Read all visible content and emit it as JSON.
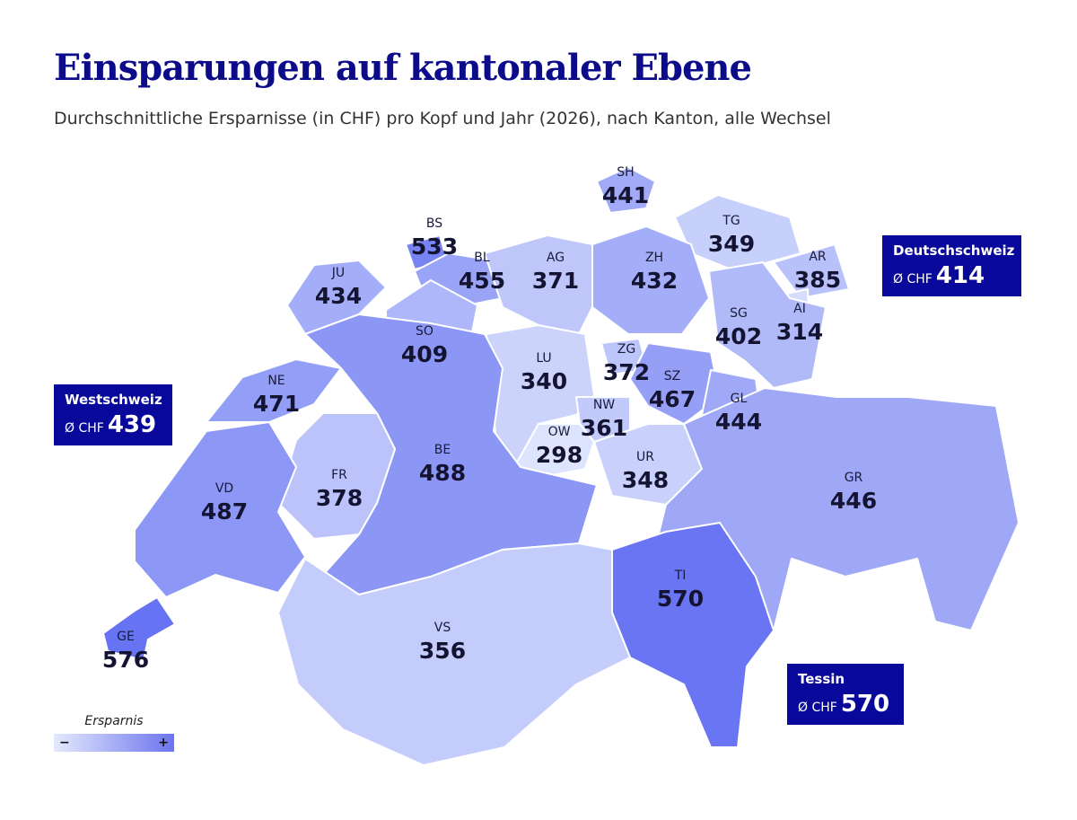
{
  "title": "Einsparungen auf kantonaler Ebene",
  "subtitle": "Durchschnittliche Ersparnisse (in CHF) pro Kopf und Jahr (2026), nach Kanton, alle Wechsel",
  "color_scale": {
    "low": "#dde4fd",
    "high": "#6673f2",
    "border": "#ffffff",
    "box_bg": "#08089a"
  },
  "cantons": [
    {
      "code": "SH",
      "value": 441
    },
    {
      "code": "BS",
      "value": 533
    },
    {
      "code": "TG",
      "value": 349
    },
    {
      "code": "AR",
      "value": 385
    },
    {
      "code": "JU",
      "value": 434
    },
    {
      "code": "BL",
      "value": 455
    },
    {
      "code": "AG",
      "value": 371
    },
    {
      "code": "ZH",
      "value": 432
    },
    {
      "code": "AI",
      "value": 314
    },
    {
      "code": "SG",
      "value": 402
    },
    {
      "code": "SO",
      "value": 409
    },
    {
      "code": "LU",
      "value": 340
    },
    {
      "code": "ZG",
      "value": 372
    },
    {
      "code": "SZ",
      "value": 467
    },
    {
      "code": "NE",
      "value": 471
    },
    {
      "code": "NW",
      "value": 361
    },
    {
      "code": "GL",
      "value": 444
    },
    {
      "code": "OW",
      "value": 298
    },
    {
      "code": "UR",
      "value": 348
    },
    {
      "code": "BE",
      "value": 488
    },
    {
      "code": "FR",
      "value": 378
    },
    {
      "code": "VD",
      "value": 487
    },
    {
      "code": "GR",
      "value": 446
    },
    {
      "code": "TI",
      "value": 570
    },
    {
      "code": "VS",
      "value": 356
    },
    {
      "code": "GE",
      "value": 576
    }
  ],
  "regions": {
    "deutschschweiz": {
      "name": "Deutschschweiz",
      "prefix": "Ø CHF",
      "value": "414"
    },
    "westschweiz": {
      "name": "Westschweiz",
      "prefix": "Ø CHF",
      "value": "439"
    },
    "tessin": {
      "name": "Tessin",
      "prefix": "Ø CHF",
      "value": "570"
    }
  },
  "legend": {
    "title": "Ersparnis",
    "min_label": "−",
    "max_label": "+"
  }
}
